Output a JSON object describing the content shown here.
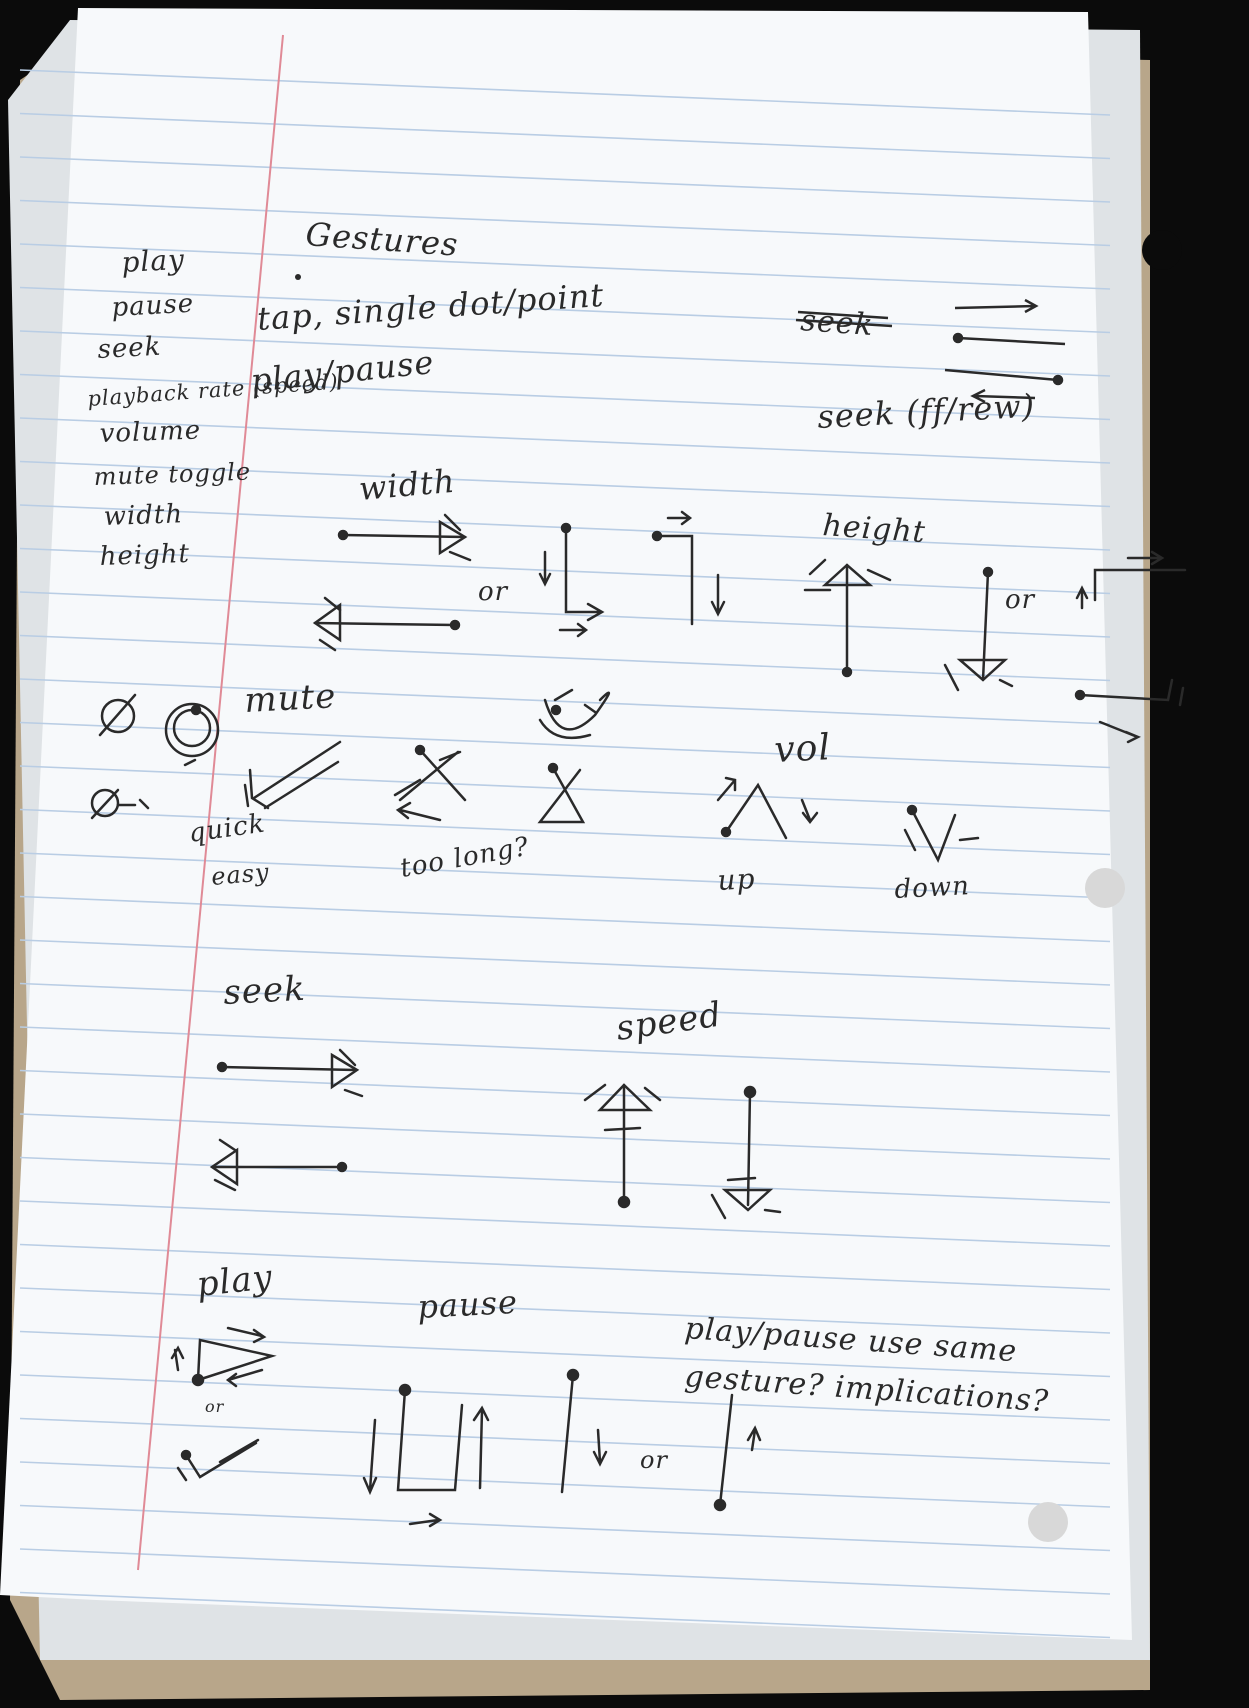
{
  "heading": "Gestures",
  "feature_list": [
    "play",
    "pause",
    "seek",
    "playback rate (speed)",
    "volume",
    "mute toggle",
    "width",
    "height"
  ],
  "notes": {
    "tap_line1": "tap, single dot/point",
    "tap_line2": "play/pause",
    "seek_crossed": "seek",
    "seek_ffrew": "seek (ff/rew)",
    "width": "width",
    "height": "height",
    "or": "or",
    "mute": "mute",
    "quick": "quick",
    "easy": "easy",
    "too_long": "too long?",
    "vol": "vol",
    "up": "up",
    "down": "down",
    "seek": "seek",
    "speed": "speed",
    "play": "play",
    "pause": "pause",
    "playpause_q1": "play/pause use same",
    "playpause_q2": "gesture? implications?"
  },
  "colors": {
    "paper": "#f7f9fb",
    "rule_line": "#b9cde4",
    "margin_line": "#e08a96",
    "ink": "#2a2a2a",
    "cardboard": "#b8a68a"
  }
}
